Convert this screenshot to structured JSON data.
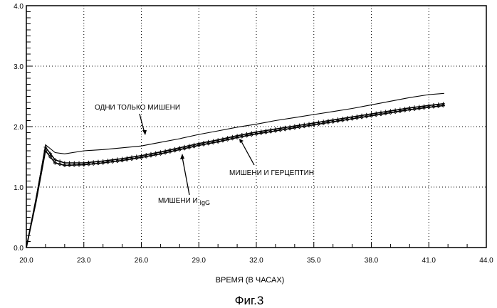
{
  "chart_data": {
    "type": "line",
    "xlabel": "ВРЕМЯ (В ЧАСАХ)",
    "ylabel": "",
    "xlim": [
      20.0,
      44.0
    ],
    "ylim": [
      0.0,
      4.0
    ],
    "x_ticks": [
      "20.0",
      "23.0",
      "26.0",
      "29.0",
      "32.0",
      "35.0",
      "38.0",
      "41.0",
      "44.0"
    ],
    "y_ticks": [
      "0.0",
      "1.0",
      "2.0",
      "3.0",
      "4.0"
    ],
    "grid": true,
    "caption": "Фиг.3",
    "series": [
      {
        "name": "ОДНИ ТОЛЬКО МИШЕНИ",
        "color": "#000000",
        "points": [
          [
            20.0,
            0.0
          ],
          [
            20.5,
            0.8
          ],
          [
            21.0,
            1.7
          ],
          [
            21.5,
            1.57
          ],
          [
            22.0,
            1.55
          ],
          [
            23.0,
            1.6
          ],
          [
            24.0,
            1.62
          ],
          [
            25.0,
            1.65
          ],
          [
            26.0,
            1.68
          ],
          [
            27.0,
            1.74
          ],
          [
            28.0,
            1.8
          ],
          [
            29.0,
            1.87
          ],
          [
            30.0,
            1.93
          ],
          [
            31.0,
            1.99
          ],
          [
            32.0,
            2.04
          ],
          [
            33.0,
            2.1
          ],
          [
            34.0,
            2.15
          ],
          [
            35.0,
            2.2
          ],
          [
            36.0,
            2.25
          ],
          [
            37.0,
            2.3
          ],
          [
            38.0,
            2.36
          ],
          [
            39.0,
            2.42
          ],
          [
            40.0,
            2.48
          ],
          [
            41.0,
            2.53
          ],
          [
            41.8,
            2.55
          ]
        ]
      },
      {
        "name": "МИШЕНИ И IgG",
        "color": "#000000",
        "points": [
          [
            20.0,
            0.0
          ],
          [
            20.5,
            0.8
          ],
          [
            21.0,
            1.66
          ],
          [
            21.5,
            1.45
          ],
          [
            22.0,
            1.4
          ],
          [
            23.0,
            1.4
          ],
          [
            24.0,
            1.43
          ],
          [
            25.0,
            1.47
          ],
          [
            26.0,
            1.52
          ],
          [
            27.0,
            1.58
          ],
          [
            28.0,
            1.65
          ],
          [
            29.0,
            1.72
          ],
          [
            30.0,
            1.78
          ],
          [
            31.0,
            1.85
          ],
          [
            32.0,
            1.91
          ],
          [
            33.0,
            1.96
          ],
          [
            34.0,
            2.01
          ],
          [
            35.0,
            2.06
          ],
          [
            36.0,
            2.11
          ],
          [
            37.0,
            2.16
          ],
          [
            38.0,
            2.21
          ],
          [
            39.0,
            2.26
          ],
          [
            40.0,
            2.31
          ],
          [
            41.0,
            2.35
          ],
          [
            41.8,
            2.38
          ]
        ]
      },
      {
        "name": "МИШЕНИ И ГЕРЦЕПТИН",
        "color": "#000000",
        "points": [
          [
            20.0,
            0.0
          ],
          [
            20.5,
            0.75
          ],
          [
            21.0,
            1.6
          ],
          [
            21.5,
            1.4
          ],
          [
            22.0,
            1.36
          ],
          [
            23.0,
            1.37
          ],
          [
            24.0,
            1.4
          ],
          [
            25.0,
            1.44
          ],
          [
            26.0,
            1.49
          ],
          [
            27.0,
            1.55
          ],
          [
            28.0,
            1.62
          ],
          [
            29.0,
            1.69
          ],
          [
            30.0,
            1.75
          ],
          [
            31.0,
            1.82
          ],
          [
            32.0,
            1.88
          ],
          [
            33.0,
            1.93
          ],
          [
            34.0,
            1.98
          ],
          [
            35.0,
            2.03
          ],
          [
            36.0,
            2.08
          ],
          [
            37.0,
            2.13
          ],
          [
            38.0,
            2.18
          ],
          [
            39.0,
            2.23
          ],
          [
            40.0,
            2.28
          ],
          [
            41.0,
            2.32
          ],
          [
            41.8,
            2.35
          ]
        ]
      }
    ],
    "annotations": [
      {
        "text": "ОДНИ ТОЛЬКО МИШЕНИ",
        "series": 0
      },
      {
        "text": "МИШЕНИ И ГЕРЦЕПТИН",
        "series": 2
      },
      {
        "text": "МИШЕНИ И ",
        "text2": "IgG",
        "series": 1
      }
    ]
  }
}
